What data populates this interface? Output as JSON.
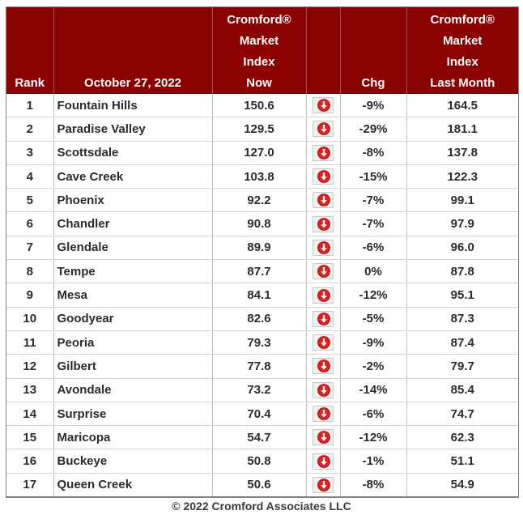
{
  "headers": {
    "rank": "Rank",
    "date": "October 27, 2022",
    "now_lines": [
      "Cromford®",
      "Market",
      "Index",
      "Now"
    ],
    "chg": "Chg",
    "last_lines": [
      "Cromford®",
      "Market",
      "Index",
      "Last Month"
    ]
  },
  "rows": [
    {
      "rank": "1",
      "city": "Fountain Hills",
      "now": "150.6",
      "chg": "-9%",
      "last": "164.5",
      "direction": "down"
    },
    {
      "rank": "2",
      "city": "Paradise Valley",
      "now": "129.5",
      "chg": "-29%",
      "last": "181.1",
      "direction": "down"
    },
    {
      "rank": "3",
      "city": "Scottsdale",
      "now": "127.0",
      "chg": "-8%",
      "last": "137.8",
      "direction": "down"
    },
    {
      "rank": "4",
      "city": "Cave Creek",
      "now": "103.8",
      "chg": "-15%",
      "last": "122.3",
      "direction": "down"
    },
    {
      "rank": "5",
      "city": "Phoenix",
      "now": "92.2",
      "chg": "-7%",
      "last": "99.1",
      "direction": "down"
    },
    {
      "rank": "6",
      "city": "Chandler",
      "now": "90.8",
      "chg": "-7%",
      "last": "97.9",
      "direction": "down"
    },
    {
      "rank": "7",
      "city": "Glendale",
      "now": "89.9",
      "chg": "-6%",
      "last": "96.0",
      "direction": "down"
    },
    {
      "rank": "8",
      "city": "Tempe",
      "now": "87.7",
      "chg": "0%",
      "last": "87.8",
      "direction": "down"
    },
    {
      "rank": "9",
      "city": "Mesa",
      "now": "84.1",
      "chg": "-12%",
      "last": "95.1",
      "direction": "down"
    },
    {
      "rank": "10",
      "city": "Goodyear",
      "now": "82.6",
      "chg": "-5%",
      "last": "87.3",
      "direction": "down"
    },
    {
      "rank": "11",
      "city": "Peoria",
      "now": "79.3",
      "chg": "-9%",
      "last": "87.4",
      "direction": "down"
    },
    {
      "rank": "12",
      "city": "Gilbert",
      "now": "77.8",
      "chg": "-2%",
      "last": "79.7",
      "direction": "down"
    },
    {
      "rank": "13",
      "city": "Avondale",
      "now": "73.2",
      "chg": "-14%",
      "last": "85.4",
      "direction": "down"
    },
    {
      "rank": "14",
      "city": "Surprise",
      "now": "70.4",
      "chg": "-6%",
      "last": "74.7",
      "direction": "down"
    },
    {
      "rank": "15",
      "city": "Maricopa",
      "now": "54.7",
      "chg": "-12%",
      "last": "62.3",
      "direction": "down"
    },
    {
      "rank": "16",
      "city": "Buckeye",
      "now": "50.8",
      "chg": "-1%",
      "last": "51.1",
      "direction": "down"
    },
    {
      "rank": "17",
      "city": "Queen Creek",
      "now": "50.6",
      "chg": "-8%",
      "last": "54.9",
      "direction": "down"
    }
  ],
  "icon": "down-arrow-icon",
  "colors": {
    "header_bg": "#8b0000",
    "arrow_red": "#e02020"
  },
  "footer": "© 2022 Cromford Associates LLC"
}
